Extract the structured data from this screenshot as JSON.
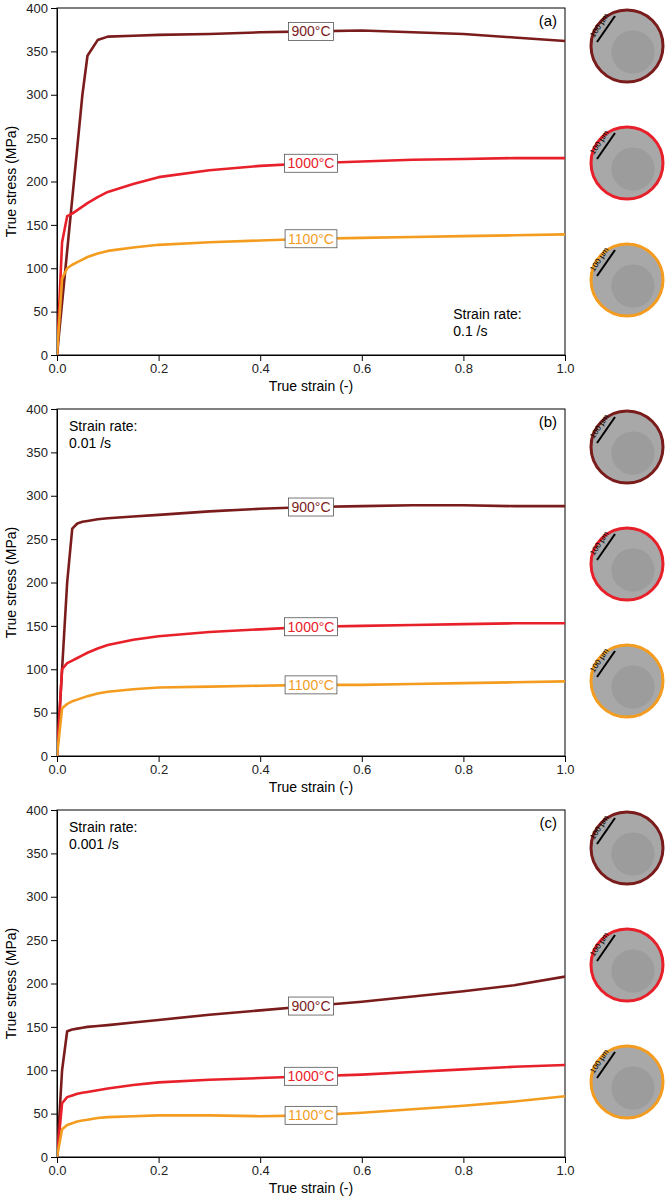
{
  "chart_data": [
    {
      "type": "line",
      "panel": "(a)",
      "annotations": [
        "Strain rate:",
        "0.1 /s"
      ],
      "x_label": "True strain (-)",
      "y_label": "True stress (MPa)",
      "xlim": [
        0,
        1
      ],
      "ylim": [
        0,
        400
      ],
      "xticks": [
        {
          "value": 0,
          "label": "0.0"
        },
        {
          "value": 0.2,
          "label": "0.2"
        },
        {
          "value": 0.4,
          "label": "0.4"
        },
        {
          "value": 0.6,
          "label": "0.6"
        },
        {
          "value": 0.8,
          "label": "0.8"
        },
        {
          "value": 1,
          "label": "1.0"
        }
      ],
      "yticks": [
        0,
        50,
        100,
        150,
        200,
        250,
        300,
        350,
        400
      ],
      "grid": false,
      "x": [
        0,
        0.01,
        0.02,
        0.03,
        0.04,
        0.05,
        0.06,
        0.08,
        0.1,
        0.15,
        0.2,
        0.3,
        0.4,
        0.5,
        0.6,
        0.7,
        0.8,
        0.9,
        1.0
      ],
      "series": [
        {
          "name": "900°C",
          "color": "#7b1c1c",
          "values": [
            0,
            60,
            120,
            180,
            240,
            300,
            345,
            363,
            367,
            368,
            369,
            370,
            372,
            373,
            374,
            372,
            370,
            366,
            362
          ]
        },
        {
          "name": "1000°C",
          "color": "#e8202a",
          "values": [
            0,
            130,
            160,
            163,
            167,
            171,
            175,
            182,
            188,
            197,
            205,
            213,
            218,
            221,
            223,
            225,
            226,
            227,
            227
          ]
        },
        {
          "name": "1100°C",
          "color": "#f39c1f",
          "values": [
            0,
            88,
            100,
            104,
            107,
            110,
            113,
            117,
            120,
            124,
            127,
            130,
            132,
            134,
            135,
            136,
            137,
            138,
            139
          ]
        }
      ],
      "micrographs": [
        {
          "scale": "100 µm",
          "color": "#7b1c1c"
        },
        {
          "scale": "100 µm",
          "color": "#e8202a"
        },
        {
          "scale": "100 µm",
          "color": "#f39c1f"
        }
      ]
    },
    {
      "type": "line",
      "panel": "(b)",
      "annotations": [
        "Strain rate:",
        "0.01 /s"
      ],
      "x_label": "True strain (-)",
      "y_label": "True stress (MPa)",
      "xlim": [
        0,
        1
      ],
      "ylim": [
        0,
        400
      ],
      "xticks": [
        {
          "value": 0,
          "label": "0.0"
        },
        {
          "value": 0.2,
          "label": "0.2"
        },
        {
          "value": 0.4,
          "label": "0.4"
        },
        {
          "value": 0.6,
          "label": "0.6"
        },
        {
          "value": 0.8,
          "label": "0.8"
        },
        {
          "value": 1,
          "label": "1.0"
        }
      ],
      "yticks": [
        0,
        50,
        100,
        150,
        200,
        250,
        300,
        350,
        400
      ],
      "grid": false,
      "x": [
        0,
        0.01,
        0.02,
        0.03,
        0.04,
        0.05,
        0.06,
        0.08,
        0.1,
        0.15,
        0.2,
        0.3,
        0.4,
        0.5,
        0.6,
        0.7,
        0.8,
        0.9,
        1.0
      ],
      "series": [
        {
          "name": "900°C",
          "color": "#7b1c1c",
          "values": [
            0,
            100,
            200,
            262,
            268,
            270,
            271,
            273,
            274,
            276,
            278,
            282,
            285,
            287,
            288,
            289,
            289,
            288,
            288
          ]
        },
        {
          "name": "1000°C",
          "color": "#e8202a",
          "values": [
            0,
            100,
            107,
            110,
            113,
            116,
            119,
            124,
            128,
            134,
            138,
            143,
            146,
            149,
            150,
            151,
            152,
            153,
            153
          ]
        },
        {
          "name": "1100°C",
          "color": "#f39c1f",
          "values": [
            0,
            55,
            60,
            63,
            65,
            67,
            69,
            72,
            74,
            77,
            79,
            80,
            81,
            82,
            82,
            83,
            84,
            85,
            86
          ]
        }
      ],
      "micrographs": [
        {
          "scale": "100 µm",
          "color": "#7b1c1c"
        },
        {
          "scale": "100 µm",
          "color": "#e8202a"
        },
        {
          "scale": "100 µm",
          "color": "#f39c1f"
        }
      ]
    },
    {
      "type": "line",
      "panel": "(c)",
      "annotations": [
        "Strain rate:",
        "0.001 /s"
      ],
      "x_label": "True strain (-)",
      "y_label": "True stress (MPa)",
      "xlim": [
        0,
        1
      ],
      "ylim": [
        0,
        400
      ],
      "xticks": [
        {
          "value": 0,
          "label": "0.0"
        },
        {
          "value": 0.2,
          "label": "0.2"
        },
        {
          "value": 0.4,
          "label": "0.4"
        },
        {
          "value": 0.6,
          "label": "0.6"
        },
        {
          "value": 0.8,
          "label": "0.8"
        },
        {
          "value": 1,
          "label": "1.0"
        }
      ],
      "yticks": [
        0,
        50,
        100,
        150,
        200,
        250,
        300,
        350,
        400
      ],
      "grid": false,
      "x": [
        0,
        0.01,
        0.02,
        0.03,
        0.04,
        0.05,
        0.06,
        0.08,
        0.1,
        0.15,
        0.2,
        0.3,
        0.4,
        0.5,
        0.6,
        0.7,
        0.8,
        0.9,
        1.0
      ],
      "series": [
        {
          "name": "900°C",
          "color": "#7b1c1c",
          "values": [
            0,
            100,
            145,
            147,
            148,
            149,
            150,
            151,
            152,
            155,
            158,
            164,
            169,
            174,
            179,
            185,
            191,
            198,
            208
          ]
        },
        {
          "name": "1000°C",
          "color": "#e8202a",
          "values": [
            0,
            62,
            69,
            71,
            73,
            74,
            75,
            77,
            79,
            83,
            86,
            89,
            91,
            93,
            95,
            98,
            101,
            104,
            106
          ]
        },
        {
          "name": "1100°C",
          "color": "#f39c1f",
          "values": [
            0,
            32,
            37,
            39,
            41,
            42,
            43,
            45,
            46,
            47,
            48,
            48,
            47,
            48,
            51,
            55,
            59,
            64,
            70
          ]
        }
      ],
      "micrographs": [
        {
          "scale": "100 µm",
          "color": "#7b1c1c"
        },
        {
          "scale": "100 µm",
          "color": "#e8202a"
        },
        {
          "scale": "100 µm",
          "color": "#f39c1f"
        }
      ]
    }
  ]
}
